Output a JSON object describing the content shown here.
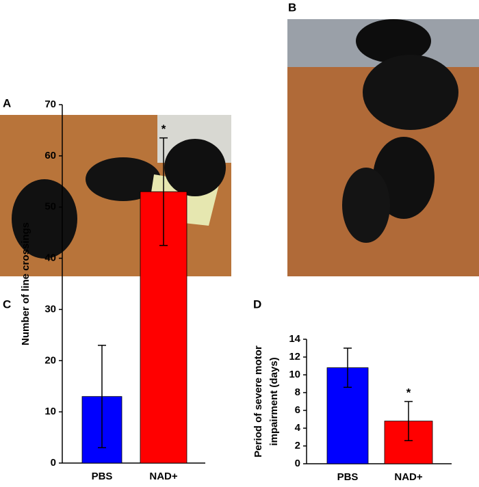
{
  "panel_labels": [
    "A",
    "B",
    "C",
    "D"
  ],
  "chart_data": [
    {
      "type": "bar",
      "y_label": [
        "Number of line crossings"
      ],
      "categories": [
        "PBS",
        "NAD+"
      ],
      "values": [
        13,
        53
      ],
      "errors": [
        10,
        10.5
      ],
      "colors": [
        "#0000ff",
        "#ff0000"
      ],
      "ylim": [
        0,
        70
      ],
      "yticks": [
        0,
        10,
        20,
        30,
        40,
        50,
        60,
        70
      ],
      "annotations": [
        {
          "text": "*",
          "x": "NAD+"
        }
      ]
    },
    {
      "type": "bar",
      "y_label": [
        "Period of severe motor",
        "impairment (days)"
      ],
      "categories": [
        "PBS",
        "NAD+"
      ],
      "values": [
        10.8,
        4.8
      ],
      "errors": [
        2.2,
        2.2
      ],
      "colors": [
        "#0000ff",
        "#ff0000"
      ],
      "ylim": [
        0,
        14
      ],
      "yticks": [
        0,
        2,
        4,
        6,
        8,
        10,
        12,
        14
      ],
      "annotations": [
        {
          "text": "*",
          "x": "NAD+"
        }
      ]
    }
  ]
}
